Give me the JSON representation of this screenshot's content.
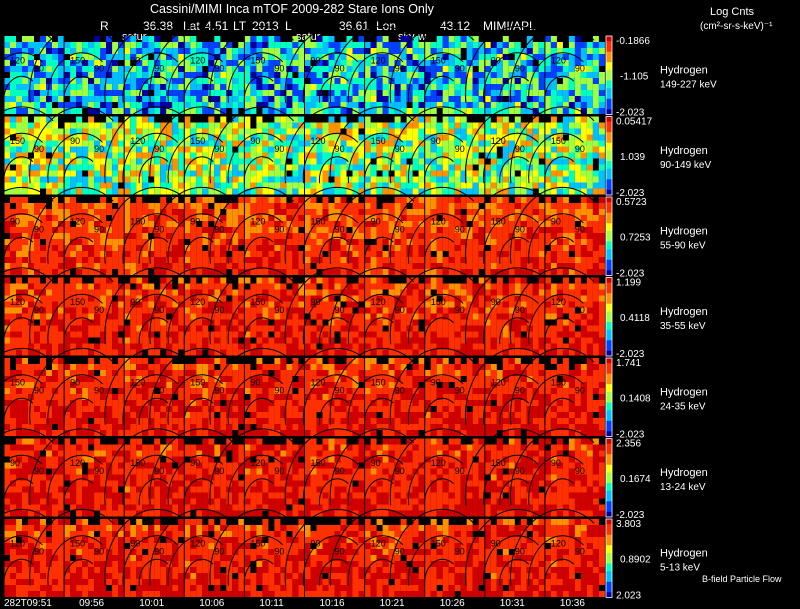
{
  "header": {
    "title": "Cassini/MIMI Inca mTOF  2009-282   Stare    Ions Only",
    "r_label": "R",
    "r_value": "36.38",
    "lat_label": "Lat",
    "lat_value": "4.51",
    "lt_label": "LT",
    "lt_value": "2013",
    "l_label": "L",
    "l_value": "36.61",
    "lon_label": "Lon",
    "lon_value": "43.12",
    "org": "MIMI/APL",
    "marker_labels": [
      "satur",
      "satur",
      "sky-w"
    ]
  },
  "units": {
    "line1": "Log Cnts",
    "line2": "(cm²-sr-s-keV)⁻¹"
  },
  "footer": {
    "legend_note": "B-field Particle Flow"
  },
  "chart_data": {
    "type": "heatmap",
    "title": "Cassini/MIMI Inca mTOF 2009-282 Stare Ions Only",
    "x_time_labels": [
      "282T09:51",
      "09:56",
      "10:01",
      "10:06",
      "10:11",
      "10:16",
      "10:21",
      "10:26",
      "10:31",
      "10:36"
    ],
    "frames_per_row": 10,
    "pitch_contour_labels": [
      "150",
      "120",
      "90",
      "60",
      "30"
    ],
    "rows": [
      {
        "species": "Hydrogen",
        "energy": "149-227 keV",
        "cbar_max": "-0.1866",
        "cbar_mid": "-1.105",
        "cbar_min": "-2.023",
        "level": 0.3
      },
      {
        "species": "Hydrogen",
        "energy": "90-149 keV",
        "cbar_max": "0.05417",
        "cbar_mid": "1.039",
        "cbar_min": "-2.023",
        "level": 0.5
      },
      {
        "species": "Hydrogen",
        "energy": "55-90 keV",
        "cbar_max": "0.5723",
        "cbar_mid": "0.7253",
        "cbar_min": "-2.023",
        "level": 0.82
      },
      {
        "species": "Hydrogen",
        "energy": "35-55 keV",
        "cbar_max": "1.199",
        "cbar_mid": "0.4118",
        "cbar_min": "-2.023",
        "level": 0.85
      },
      {
        "species": "Hydrogen",
        "energy": "24-35 keV",
        "cbar_max": "1.741",
        "cbar_mid": "0.1408",
        "cbar_min": "-2.023",
        "level": 0.86
      },
      {
        "species": "Hydrogen",
        "energy": "13-24 keV",
        "cbar_max": "2.356",
        "cbar_mid": "0.1674",
        "cbar_min": "-2.023",
        "level": 0.87
      },
      {
        "species": "Hydrogen",
        "energy": "5-13 keV",
        "cbar_max": "3.803",
        "cbar_mid": "0.8902",
        "cbar_min": "2.023",
        "level": 0.86
      }
    ],
    "colormap": [
      "#0000a0",
      "#0040ff",
      "#00c0ff",
      "#00ffc0",
      "#a0ff40",
      "#ffff00",
      "#ff9000",
      "#ff3000",
      "#d00000"
    ]
  }
}
